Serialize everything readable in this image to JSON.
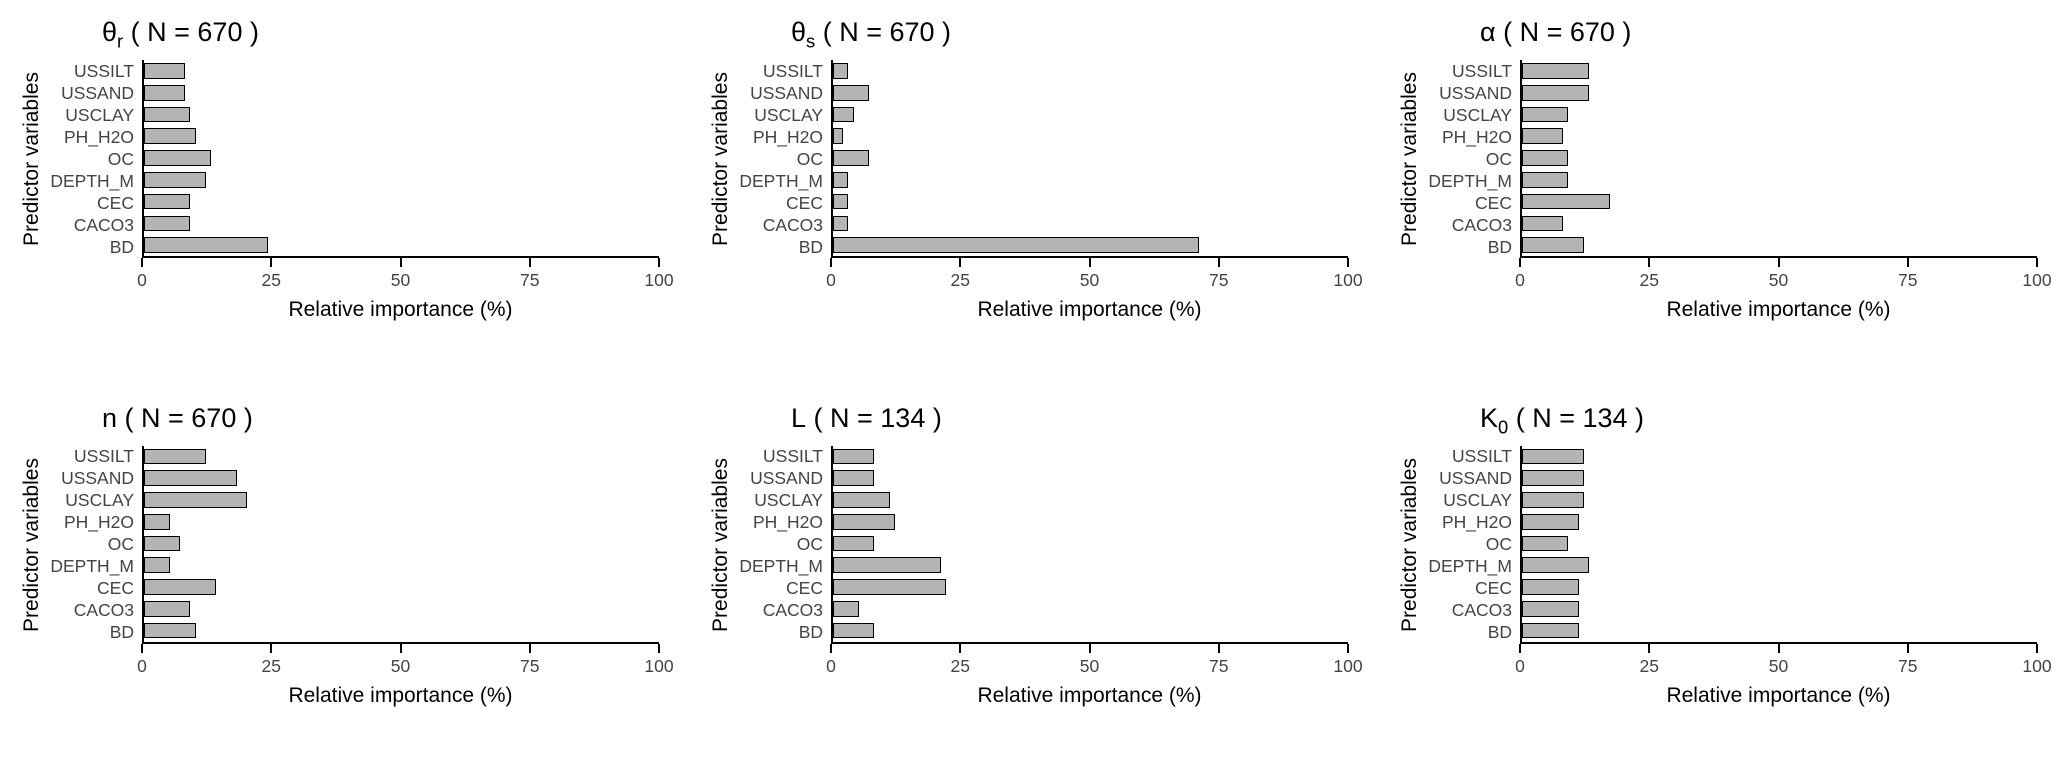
{
  "figure": {
    "background": "#ffffff",
    "bar_fill": "#b4b4b4",
    "bar_stroke": "#000000",
    "grid": "off",
    "legend": "none"
  },
  "chart_data": [
    {
      "type": "bar",
      "orientation": "horizontal",
      "title": "θr ( N = 670 )",
      "title_main": "θ",
      "title_sub": "r",
      "title_rest": " ( N = 670 )",
      "xlabel": "Relative importance (%)",
      "ylabel": "Predictor variables",
      "xlim": [
        0,
        100
      ],
      "ticks": [
        0,
        25,
        50,
        75,
        100
      ],
      "categories": [
        "USSILT",
        "USSAND",
        "USCLAY",
        "PH_H2O",
        "OC",
        "DEPTH_M",
        "CEC",
        "CACO3",
        "BD"
      ],
      "values": [
        8,
        8,
        9,
        10,
        13,
        12,
        9,
        9,
        24
      ]
    },
    {
      "type": "bar",
      "orientation": "horizontal",
      "title": "θs ( N = 670 )",
      "title_main": "θ",
      "title_sub": "s",
      "title_rest": " ( N = 670 )",
      "xlabel": "Relative importance (%)",
      "ylabel": "Predictor variables",
      "xlim": [
        0,
        100
      ],
      "ticks": [
        0,
        25,
        50,
        75,
        100
      ],
      "categories": [
        "USSILT",
        "USSAND",
        "USCLAY",
        "PH_H2O",
        "OC",
        "DEPTH_M",
        "CEC",
        "CACO3",
        "BD"
      ],
      "values": [
        3,
        7,
        4,
        2,
        7,
        3,
        3,
        3,
        71
      ]
    },
    {
      "type": "bar",
      "orientation": "horizontal",
      "title": "α ( N = 670 )",
      "title_main": "α",
      "title_sub": "",
      "title_rest": " ( N = 670 )",
      "xlabel": "Relative importance (%)",
      "ylabel": "Predictor variables",
      "xlim": [
        0,
        100
      ],
      "ticks": [
        0,
        25,
        50,
        75,
        100
      ],
      "categories": [
        "USSILT",
        "USSAND",
        "USCLAY",
        "PH_H2O",
        "OC",
        "DEPTH_M",
        "CEC",
        "CACO3",
        "BD"
      ],
      "values": [
        13,
        13,
        9,
        8,
        9,
        9,
        17,
        8,
        12
      ]
    },
    {
      "type": "bar",
      "orientation": "horizontal",
      "title": "n ( N = 670 )",
      "title_main": "n",
      "title_sub": "",
      "title_rest": " ( N = 670 )",
      "xlabel": "Relative importance (%)",
      "ylabel": "Predictor variables",
      "xlim": [
        0,
        100
      ],
      "ticks": [
        0,
        25,
        50,
        75,
        100
      ],
      "categories": [
        "USSILT",
        "USSAND",
        "USCLAY",
        "PH_H2O",
        "OC",
        "DEPTH_M",
        "CEC",
        "CACO3",
        "BD"
      ],
      "values": [
        12,
        18,
        20,
        5,
        7,
        5,
        14,
        9,
        10
      ]
    },
    {
      "type": "bar",
      "orientation": "horizontal",
      "title": "L ( N = 134 )",
      "title_main": "L",
      "title_sub": "",
      "title_rest": " ( N = 134 )",
      "xlabel": "Relative importance (%)",
      "ylabel": "Predictor variables",
      "xlim": [
        0,
        100
      ],
      "ticks": [
        0,
        25,
        50,
        75,
        100
      ],
      "categories": [
        "USSILT",
        "USSAND",
        "USCLAY",
        "PH_H2O",
        "OC",
        "DEPTH_M",
        "CEC",
        "CACO3",
        "BD"
      ],
      "values": [
        8,
        8,
        11,
        12,
        8,
        21,
        22,
        5,
        8
      ]
    },
    {
      "type": "bar",
      "orientation": "horizontal",
      "title": "K0 ( N = 134 )",
      "title_main": "K",
      "title_sub": "0",
      "title_rest": " ( N = 134 )",
      "xlabel": "Relative importance (%)",
      "ylabel": "Predictor variables",
      "xlim": [
        0,
        100
      ],
      "ticks": [
        0,
        25,
        50,
        75,
        100
      ],
      "categories": [
        "USSILT",
        "USSAND",
        "USCLAY",
        "PH_H2O",
        "OC",
        "DEPTH_M",
        "CEC",
        "CACO3",
        "BD"
      ],
      "values": [
        12,
        12,
        12,
        11,
        9,
        13,
        11,
        11,
        11
      ]
    }
  ]
}
